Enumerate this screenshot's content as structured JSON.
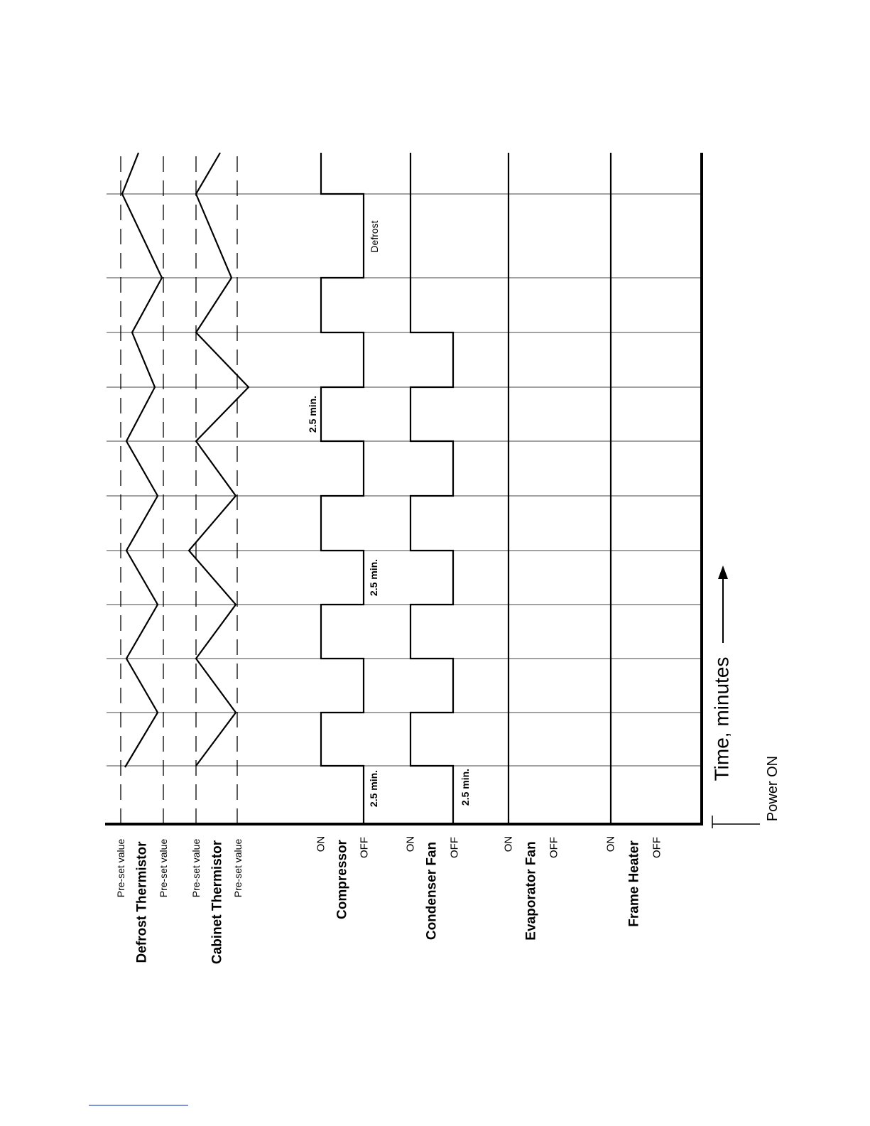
{
  "labels": {
    "defrost_thermistor": {
      "name": "Defrost Thermistor",
      "upper": "Pre-set value",
      "lower": "Pre-set value"
    },
    "cabinet_thermistor": {
      "name": "Cabinet Thermistor",
      "upper": "Pre-set value",
      "lower": "Pre-set value"
    },
    "compressor": {
      "name": "Compressor",
      "on": "ON",
      "off": "OFF"
    },
    "condenser_fan": {
      "name": "Condenser Fan",
      "on": "ON",
      "off": "OFF"
    },
    "evaporator_fan": {
      "name": "Evaporator Fan",
      "on": "ON",
      "off": "OFF"
    },
    "frame_heater": {
      "name": "Frame Heater",
      "on": "ON",
      "off": "OFF"
    }
  },
  "annotations": [
    "2.5 min.",
    "2.5 min.",
    "2.5 min.",
    "2.5 min.",
    "Defrost"
  ],
  "axis": {
    "label": "Time, minutes",
    "start": "Power ON"
  }
}
